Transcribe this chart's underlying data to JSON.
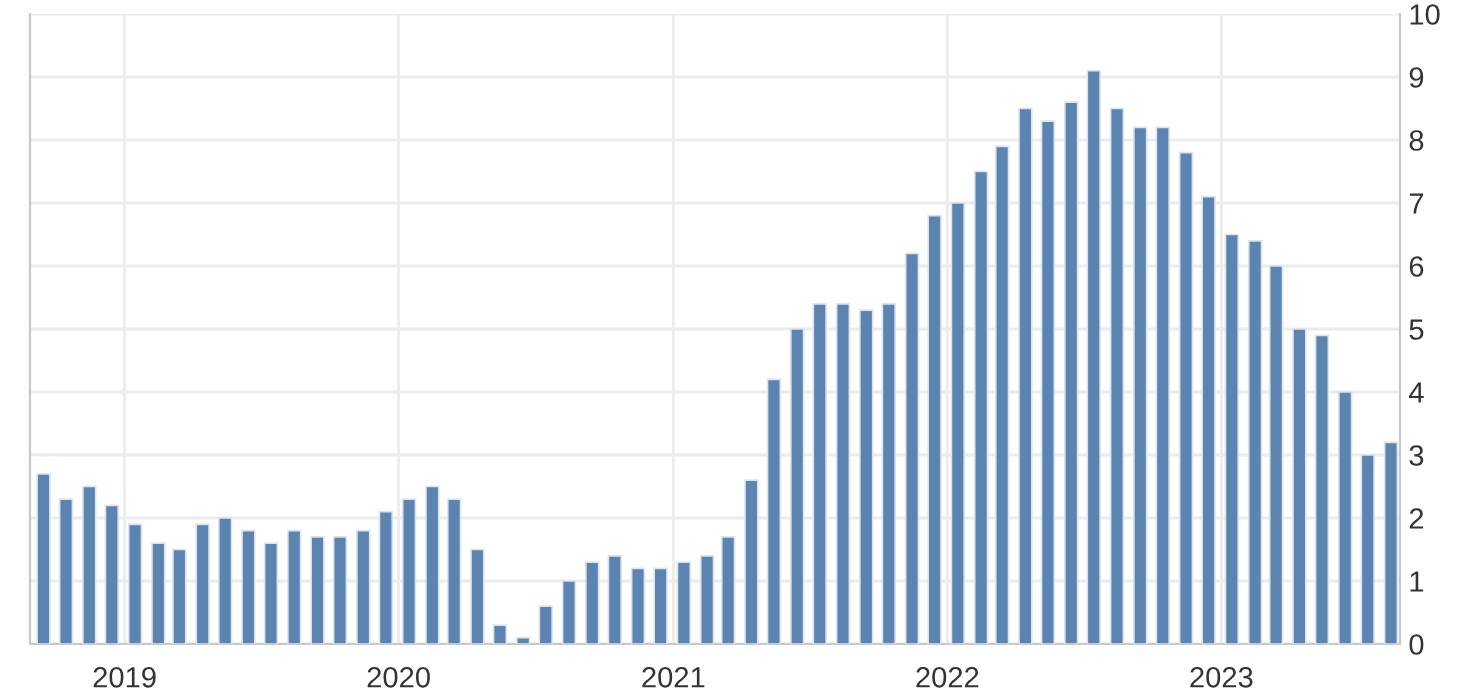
{
  "chart_data": {
    "type": "bar",
    "x": [
      "2018-09-15",
      "2018-10-15",
      "2018-11-15",
      "2018-12-15",
      "2019-01-15",
      "2019-02-15",
      "2019-03-15",
      "2019-04-15",
      "2019-05-15",
      "2019-06-15",
      "2019-07-15",
      "2019-08-15",
      "2019-09-15",
      "2019-10-15",
      "2019-11-15",
      "2019-12-15",
      "2020-01-15",
      "2020-02-15",
      "2020-03-15",
      "2020-04-15",
      "2020-05-15",
      "2020-06-15",
      "2020-07-15",
      "2020-08-15",
      "2020-09-15",
      "2020-10-15",
      "2020-11-15",
      "2020-12-15",
      "2021-01-15",
      "2021-02-15",
      "2021-03-15",
      "2021-04-15",
      "2021-05-15",
      "2021-06-15",
      "2021-07-15",
      "2021-08-15",
      "2021-09-15",
      "2021-10-15",
      "2021-11-15",
      "2021-12-15",
      "2022-01-15",
      "2022-02-15",
      "2022-03-15",
      "2022-04-15",
      "2022-05-15",
      "2022-06-15",
      "2022-07-15",
      "2022-08-15",
      "2022-09-15",
      "2022-10-15",
      "2022-11-15",
      "2022-12-15",
      "2023-01-15",
      "2023-02-15",
      "2023-03-15",
      "2023-04-15",
      "2023-05-15",
      "2023-06-15",
      "2023-07-15",
      "2023-08-15"
    ],
    "values": [
      2.7,
      2.3,
      2.5,
      2.2,
      1.9,
      1.6,
      1.5,
      1.9,
      2.0,
      1.8,
      1.6,
      1.8,
      1.7,
      1.7,
      1.8,
      2.1,
      2.3,
      2.5,
      2.3,
      1.5,
      0.3,
      0.1,
      0.6,
      1.0,
      1.3,
      1.4,
      1.2,
      1.2,
      1.3,
      1.4,
      1.7,
      2.6,
      4.2,
      5.0,
      5.4,
      5.4,
      5.3,
      5.4,
      6.2,
      6.8,
      7.0,
      7.5,
      7.9,
      8.5,
      8.3,
      8.6,
      9.1,
      8.5,
      8.2,
      8.2,
      7.8,
      7.1,
      6.5,
      6.4,
      6.0,
      5.0,
      4.9,
      4.0,
      3.0,
      3.2
    ],
    "color": "#5b84b1",
    "xlim": [
      "2018-08-28",
      "2023-08-27"
    ],
    "xticks": [
      "2019",
      "2020",
      "2021",
      "2022",
      "2023"
    ],
    "ylim": [
      0,
      10
    ],
    "yticks": [
      0,
      1,
      2,
      3,
      4,
      5,
      6,
      7,
      8,
      9,
      10
    ],
    "grid": true,
    "legend": false
  }
}
